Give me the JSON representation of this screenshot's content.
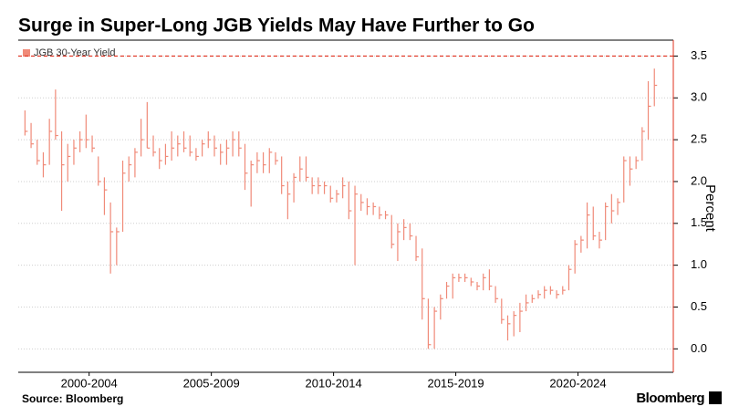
{
  "chart_data": {
    "type": "ohlc",
    "title": "Surge in Super-Long JGB Yields May Have Further to Go",
    "y_axis_label": "Percent",
    "source": "Source: Bloomberg",
    "brand": "Bloomberg",
    "legend_position": "top-left",
    "grid": true,
    "reference_line": 3.5,
    "reference_color": "#e0301e",
    "ylim": [
      -0.28,
      3.69
    ],
    "yticks": [
      {
        "value": 0,
        "label": "0.0"
      },
      0.5,
      {
        "value": 1,
        "label": "1.0"
      },
      1.5,
      {
        "value": 2,
        "label": "2.0"
      },
      2.5,
      {
        "value": 3,
        "label": "3.0"
      },
      3.5
    ],
    "xlim": [
      1999.6,
      2026.4
    ],
    "xticks": [
      {
        "value": 2002.5,
        "label": "2000-2004"
      },
      {
        "value": 2007.5,
        "label": "2005-2009"
      },
      {
        "value": 2012.5,
        "label": "2010-2014"
      },
      {
        "value": 2017.5,
        "label": "2015-2019"
      },
      {
        "value": 2022.5,
        "label": "2020-2024"
      }
    ],
    "x": [
      1999.875,
      2000.125,
      2000.375,
      2000.625,
      2000.875,
      2001.125,
      2001.375,
      2001.625,
      2001.875,
      2002.125,
      2002.375,
      2002.625,
      2002.875,
      2003.125,
      2003.375,
      2003.625,
      2003.875,
      2004.125,
      2004.375,
      2004.625,
      2004.875,
      2005.125,
      2005.375,
      2005.625,
      2005.875,
      2006.125,
      2006.375,
      2006.625,
      2006.875,
      2007.125,
      2007.375,
      2007.625,
      2007.875,
      2008.125,
      2008.375,
      2008.625,
      2008.875,
      2009.125,
      2009.375,
      2009.625,
      2009.875,
      2010.125,
      2010.375,
      2010.625,
      2010.875,
      2011.125,
      2011.375,
      2011.625,
      2011.875,
      2012.125,
      2012.375,
      2012.625,
      2012.875,
      2013.125,
      2013.375,
      2013.625,
      2013.875,
      2014.125,
      2014.375,
      2014.625,
      2014.875,
      2015.125,
      2015.375,
      2015.625,
      2015.875,
      2016.125,
      2016.375,
      2016.625,
      2016.875,
      2017.125,
      2017.375,
      2017.625,
      2017.875,
      2018.125,
      2018.375,
      2018.625,
      2018.875,
      2019.125,
      2019.375,
      2019.625,
      2019.875,
      2020.125,
      2020.375,
      2020.625,
      2020.875,
      2021.125,
      2021.375,
      2021.625,
      2021.875,
      2022.125,
      2022.375,
      2022.625,
      2022.875,
      2023.125,
      2023.375,
      2023.625,
      2023.875,
      2024.125,
      2024.375,
      2024.625,
      2024.875,
      2025.125,
      2025.375,
      2025.625
    ],
    "series": [
      {
        "name": "JGB 30-Year Yield",
        "color": "#f08a78",
        "high": [
          2.85,
          2.7,
          2.5,
          2.35,
          2.75,
          3.1,
          2.6,
          2.45,
          2.5,
          2.6,
          2.8,
          2.55,
          2.3,
          2.05,
          1.75,
          1.45,
          2.25,
          2.3,
          2.4,
          2.75,
          2.95,
          2.55,
          2.4,
          2.45,
          2.6,
          2.55,
          2.6,
          2.55,
          2.4,
          2.5,
          2.6,
          2.55,
          2.45,
          2.5,
          2.6,
          2.6,
          2.45,
          2.25,
          2.35,
          2.35,
          2.4,
          2.35,
          2.3,
          2.0,
          2.1,
          2.3,
          2.3,
          2.05,
          2.05,
          2.0,
          1.95,
          1.9,
          2.05,
          2.0,
          1.95,
          1.85,
          1.8,
          1.75,
          1.7,
          1.65,
          1.6,
          1.5,
          1.55,
          1.5,
          1.35,
          1.2,
          0.6,
          0.5,
          0.65,
          0.8,
          0.9,
          0.9,
          0.9,
          0.85,
          0.8,
          0.9,
          0.95,
          0.75,
          0.6,
          0.4,
          0.45,
          0.55,
          0.65,
          0.65,
          0.7,
          0.75,
          0.75,
          0.7,
          0.75,
          1.0,
          1.3,
          1.35,
          1.75,
          1.7,
          1.4,
          1.75,
          1.85,
          1.8,
          2.3,
          2.3,
          2.3,
          2.65,
          3.2,
          3.35
        ],
        "low": [
          2.55,
          2.4,
          2.2,
          2.05,
          2.2,
          2.5,
          1.65,
          2.0,
          2.2,
          2.35,
          2.4,
          2.35,
          1.95,
          1.6,
          0.9,
          1.0,
          1.4,
          2.0,
          2.05,
          2.3,
          2.4,
          2.3,
          2.15,
          2.2,
          2.25,
          2.3,
          2.35,
          2.3,
          2.25,
          2.3,
          2.4,
          2.3,
          2.2,
          2.2,
          2.3,
          2.3,
          1.9,
          1.7,
          2.1,
          2.1,
          2.1,
          2.2,
          1.85,
          1.55,
          1.75,
          2.0,
          2.0,
          1.85,
          1.85,
          1.85,
          1.75,
          1.75,
          1.8,
          1.55,
          1.0,
          1.65,
          1.6,
          1.6,
          1.55,
          1.55,
          1.2,
          1.05,
          1.3,
          1.3,
          1.05,
          0.35,
          0.0,
          0.0,
          0.35,
          0.6,
          0.6,
          0.8,
          0.8,
          0.75,
          0.7,
          0.7,
          0.7,
          0.55,
          0.3,
          0.1,
          0.15,
          0.2,
          0.45,
          0.55,
          0.6,
          0.6,
          0.65,
          0.6,
          0.65,
          0.7,
          0.9,
          1.15,
          1.2,
          1.3,
          1.2,
          1.3,
          1.5,
          1.6,
          1.75,
          1.95,
          2.15,
          2.25,
          2.5,
          2.9
        ],
        "close": [
          2.6,
          2.45,
          2.25,
          2.2,
          2.6,
          2.55,
          2.2,
          2.3,
          2.4,
          2.5,
          2.5,
          2.4,
          2.0,
          1.9,
          1.4,
          1.4,
          2.1,
          2.2,
          2.35,
          2.5,
          2.4,
          2.35,
          2.25,
          2.3,
          2.4,
          2.45,
          2.4,
          2.35,
          2.3,
          2.45,
          2.5,
          2.4,
          2.35,
          2.4,
          2.5,
          2.4,
          2.1,
          2.2,
          2.25,
          2.2,
          2.35,
          2.25,
          1.95,
          1.85,
          2.05,
          2.15,
          2.05,
          1.95,
          1.95,
          1.95,
          1.8,
          1.85,
          1.95,
          1.65,
          1.85,
          1.75,
          1.7,
          1.7,
          1.6,
          1.6,
          1.25,
          1.4,
          1.45,
          1.35,
          1.1,
          0.6,
          0.05,
          0.45,
          0.6,
          0.75,
          0.85,
          0.85,
          0.85,
          0.8,
          0.75,
          0.85,
          0.75,
          0.6,
          0.35,
          0.3,
          0.4,
          0.45,
          0.55,
          0.6,
          0.65,
          0.7,
          0.7,
          0.65,
          0.7,
          0.95,
          1.25,
          1.3,
          1.6,
          1.35,
          1.3,
          1.7,
          1.65,
          1.75,
          2.25,
          2.15,
          2.25,
          2.6,
          2.9,
          3.15
        ]
      }
    ]
  }
}
